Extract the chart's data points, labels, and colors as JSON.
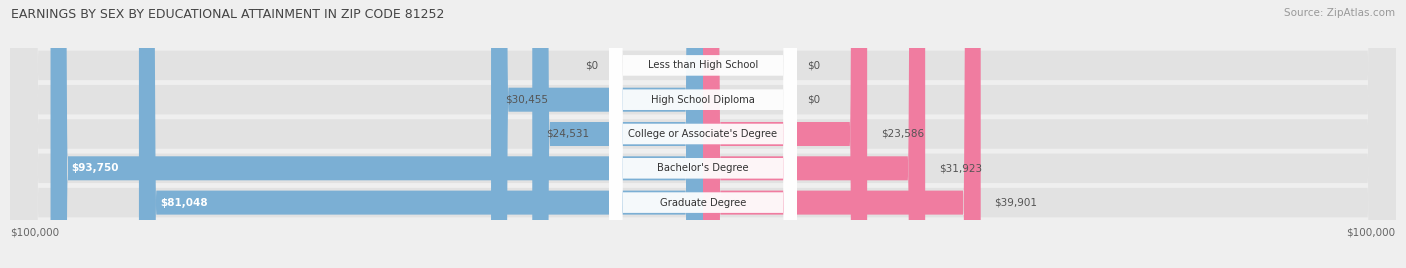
{
  "title": "EARNINGS BY SEX BY EDUCATIONAL ATTAINMENT IN ZIP CODE 81252",
  "source": "Source: ZipAtlas.com",
  "categories": [
    "Less than High School",
    "High School Diploma",
    "College or Associate's Degree",
    "Bachelor's Degree",
    "Graduate Degree"
  ],
  "male_values": [
    0,
    30455,
    24531,
    93750,
    81048
  ],
  "female_values": [
    0,
    0,
    23586,
    31923,
    39901
  ],
  "male_labels": [
    "$0",
    "$30,455",
    "$24,531",
    "$93,750",
    "$81,048"
  ],
  "female_labels": [
    "$0",
    "$0",
    "$23,586",
    "$31,923",
    "$39,901"
  ],
  "max_value": 100000,
  "male_color": "#7bafd4",
  "female_color": "#f07ca0",
  "bg_color": "#efefef",
  "row_bg_color": "#e2e2e2",
  "title_color": "#444444",
  "source_color": "#999999",
  "value_color_inside": "#ffffff",
  "value_color_outside": "#555555"
}
